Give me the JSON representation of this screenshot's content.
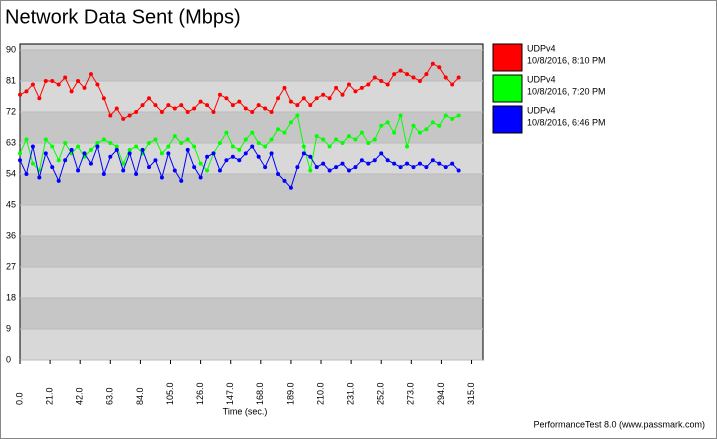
{
  "chart_data": {
    "type": "line",
    "title": "Network Data Sent (Mbps)",
    "x_label": "Time (sec.)",
    "footer": "PerformanceTest 8.0 (www.passmark.com)",
    "x": [
      0,
      4.5,
      9,
      13.5,
      18,
      22.5,
      27,
      31.5,
      36,
      40.5,
      45,
      49.5,
      54,
      58.5,
      63,
      67.5,
      72,
      76.5,
      81,
      85.5,
      90,
      94.5,
      99,
      103.5,
      108,
      112.5,
      117,
      121.5,
      126,
      130.5,
      135,
      139.5,
      144,
      148.5,
      153,
      157.5,
      162,
      166.5,
      171,
      175.5,
      180,
      184.5,
      189,
      193.5,
      198,
      202.5,
      207,
      211.5,
      216,
      220.5,
      225,
      229.5,
      234,
      238.5,
      243,
      247.5,
      252,
      256.5,
      261,
      265.5,
      270,
      274.5,
      279,
      283.5,
      288,
      292.5,
      297,
      301.5,
      306
    ],
    "series": [
      {
        "name": "UDPv4",
        "time": "10/8/2016, 8:10 PM",
        "color": "#ff0000",
        "values": [
          77,
          78,
          80,
          76,
          81,
          81,
          80,
          82,
          78,
          81,
          79,
          83,
          80,
          76,
          71,
          73,
          70,
          71,
          72,
          74,
          76,
          74,
          72,
          74,
          73,
          74,
          72,
          73,
          75,
          74,
          72,
          77,
          76,
          74,
          75,
          73,
          72,
          74,
          73,
          72,
          76,
          79,
          75,
          74,
          76,
          74,
          76,
          77,
          76,
          79,
          77,
          80,
          78,
          79,
          80,
          82,
          81,
          80,
          83,
          84,
          83,
          82,
          81,
          83,
          86,
          85,
          82,
          80,
          82
        ]
      },
      {
        "name": "UDPv4",
        "time": "10/8/2016, 7:20 PM",
        "color": "#00ff00",
        "values": [
          60,
          64,
          57,
          55,
          64,
          62,
          58,
          63,
          60,
          62,
          59,
          61,
          63,
          64,
          63,
          62,
          57,
          61,
          62,
          60,
          63,
          64,
          60,
          62,
          65,
          63,
          64,
          62,
          57,
          55,
          60,
          63,
          66,
          62,
          61,
          64,
          66,
          63,
          62,
          64,
          67,
          66,
          69,
          71,
          62,
          55,
          65,
          64,
          62,
          64,
          63,
          65,
          64,
          66,
          63,
          64,
          68,
          69,
          66,
          71,
          62,
          68,
          66,
          67,
          69,
          68,
          71,
          70,
          71
        ]
      },
      {
        "name": "UDPv4",
        "time": "10/8/2016, 6:46 PM",
        "color": "#0000ff",
        "values": [
          58,
          54,
          62,
          53,
          60,
          56,
          52,
          58,
          61,
          55,
          60,
          57,
          62,
          54,
          59,
          61,
          55,
          60,
          54,
          61,
          56,
          58,
          53,
          60,
          55,
          52,
          61,
          56,
          53,
          59,
          60,
          55,
          58,
          59,
          58,
          60,
          62,
          59,
          56,
          60,
          54,
          52,
          50,
          56,
          60,
          59,
          56,
          57,
          55,
          56,
          57,
          55,
          56,
          58,
          57,
          58,
          60,
          58,
          57,
          56,
          57,
          56,
          57,
          56,
          58,
          57,
          56,
          57,
          55
        ]
      }
    ],
    "xlim": [
      0,
      323
    ],
    "ylim": [
      0,
      90
    ],
    "xticks": [
      {
        "value": 0,
        "label": "0.0"
      },
      {
        "value": 21,
        "label": "21.0"
      },
      {
        "value": 42,
        "label": "42.0"
      },
      {
        "value": 63,
        "label": "63.0"
      },
      {
        "value": 84,
        "label": "84.0"
      },
      {
        "value": 105,
        "label": "105.0"
      },
      {
        "value": 126,
        "label": "126.0"
      },
      {
        "value": 147,
        "label": "147.0"
      },
      {
        "value": 168,
        "label": "168.0"
      },
      {
        "value": 189,
        "label": "189.0"
      },
      {
        "value": 210,
        "label": "210.0"
      },
      {
        "value": 231,
        "label": "231.0"
      },
      {
        "value": 252,
        "label": "252.0"
      },
      {
        "value": 273,
        "label": "273.0"
      },
      {
        "value": 294,
        "label": "294.0"
      },
      {
        "value": 315,
        "label": "315.0"
      }
    ],
    "yticks": [
      0,
      9,
      18,
      27,
      36,
      45,
      54,
      63,
      72,
      81,
      90
    ]
  }
}
